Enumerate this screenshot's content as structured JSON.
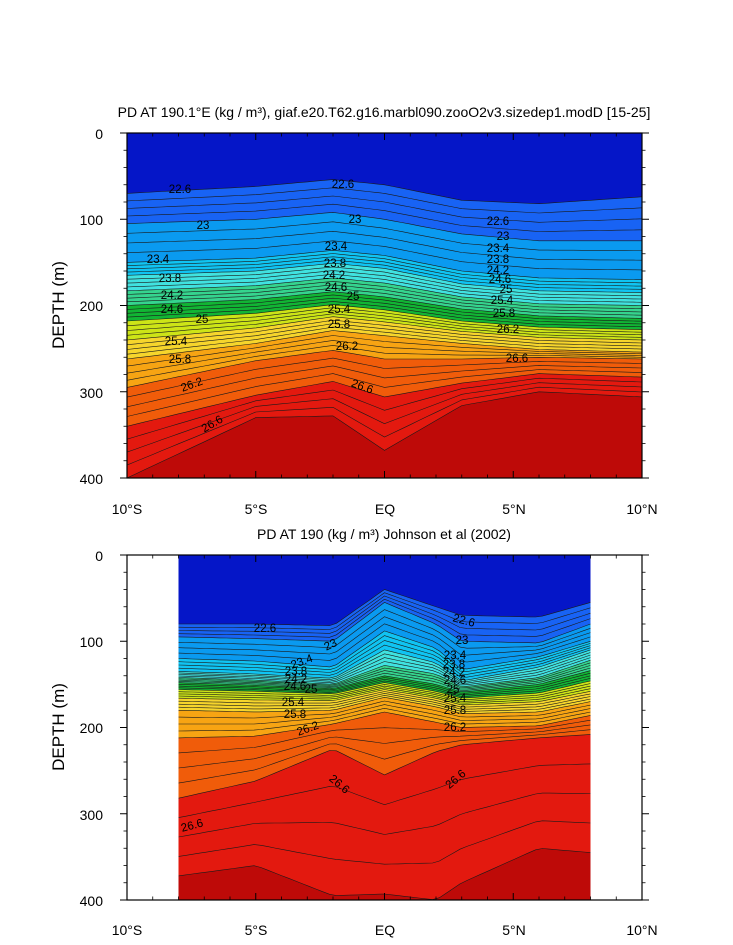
{
  "chart_data": [
    {
      "type": "contour",
      "title": "PD AT 190.1°E (kg / m³), giaf.e20.T62.g16.marbl090.zooO2v3.sizedep1.modD [15-25]",
      "xlabel": "",
      "ylabel": "DEPTH (m)",
      "xlim": [
        -10,
        10
      ],
      "ylim": [
        400,
        0
      ],
      "x_ticks": [
        -10,
        -5,
        0,
        5,
        10
      ],
      "x_tick_labels": [
        "10°S",
        "5°S",
        "EQ",
        "5°N",
        "10°N"
      ],
      "y_ticks": [
        0,
        100,
        200,
        300,
        400
      ],
      "y_tick_labels": [
        "0",
        "100",
        "200",
        "300",
        "400"
      ],
      "data_extent": [
        -10,
        10
      ],
      "contour_labels": [
        "22.6",
        "22.6",
        "22.6",
        "23",
        "23",
        "23",
        "23.4",
        "23.4",
        "23.4",
        "23.8",
        "23.8",
        "23.8",
        "24.2",
        "24.2",
        "24.2",
        "24.6",
        "24.6",
        "24.6",
        "25",
        "25",
        "25",
        "25.4",
        "25.4",
        "25.4",
        "25.8",
        "25.8",
        "25.8",
        "26.2",
        "26.2",
        "26.2",
        "26.6",
        "26.6",
        "26.6"
      ],
      "fields": {
        "22.6": [
          [
            -10,
            70
          ],
          [
            -5,
            62
          ],
          [
            -2,
            54
          ],
          [
            0,
            60
          ],
          [
            3,
            78
          ],
          [
            6,
            82
          ],
          [
            10,
            74
          ]
        ],
        "23": [
          [
            -10,
            105
          ],
          [
            -5,
            100
          ],
          [
            -2,
            92
          ],
          [
            0,
            100
          ],
          [
            3,
            117
          ],
          [
            6,
            125
          ],
          [
            10,
            125
          ]
        ],
        "23.4": [
          [
            -10,
            150
          ],
          [
            -5,
            145
          ],
          [
            -2,
            136
          ],
          [
            0,
            142
          ],
          [
            3,
            160
          ],
          [
            6,
            168
          ],
          [
            10,
            170
          ]
        ],
        "23.8": [
          [
            -10,
            165
          ],
          [
            -5,
            160
          ],
          [
            -2,
            151
          ],
          [
            0,
            157
          ],
          [
            3,
            175
          ],
          [
            6,
            183
          ],
          [
            10,
            185
          ]
        ],
        "24.2": [
          [
            -10,
            183
          ],
          [
            -5,
            177
          ],
          [
            -2,
            168
          ],
          [
            0,
            174
          ],
          [
            3,
            190
          ],
          [
            6,
            198
          ],
          [
            10,
            200
          ]
        ],
        "24.6": [
          [
            -10,
            200
          ],
          [
            -5,
            193
          ],
          [
            -2,
            184
          ],
          [
            0,
            190
          ],
          [
            3,
            204
          ],
          [
            6,
            212
          ],
          [
            10,
            215
          ]
        ],
        "25": [
          [
            -10,
            218
          ],
          [
            -5,
            209
          ],
          [
            -2,
            199
          ],
          [
            0,
            205
          ],
          [
            3,
            218
          ],
          [
            6,
            225
          ],
          [
            10,
            228
          ]
        ],
        "25.4": [
          [
            -10,
            240
          ],
          [
            -5,
            226
          ],
          [
            -2,
            213
          ],
          [
            0,
            219
          ],
          [
            3,
            230
          ],
          [
            6,
            237
          ],
          [
            10,
            240
          ]
        ],
        "25.8": [
          [
            -10,
            262
          ],
          [
            -5,
            244
          ],
          [
            -2,
            229
          ],
          [
            0,
            235
          ],
          [
            3,
            244
          ],
          [
            6,
            251
          ],
          [
            10,
            254
          ]
        ],
        "26.2": [
          [
            -10,
            295
          ],
          [
            -5,
            264
          ],
          [
            -2,
            252
          ],
          [
            0,
            262
          ],
          [
            3,
            262
          ],
          [
            6,
            260
          ],
          [
            10,
            262
          ]
        ],
        "26.6": [
          [
            -10,
            340
          ],
          [
            -5,
            304
          ],
          [
            -2,
            288
          ],
          [
            0,
            306
          ],
          [
            3,
            290
          ],
          [
            6,
            279
          ],
          [
            10,
            283
          ]
        ],
        "26.8": [
          [
            -10,
            400
          ],
          [
            -5,
            330
          ],
          [
            -2,
            328
          ],
          [
            0,
            368
          ],
          [
            3,
            316
          ],
          [
            6,
            300
          ],
          [
            10,
            306
          ]
        ]
      }
    },
    {
      "type": "contour",
      "title": "PD AT 190 (kg / m³) Johnson et al (2002)",
      "xlabel": "",
      "ylabel": "DEPTH (m)",
      "xlim": [
        -10,
        10
      ],
      "ylim": [
        400,
        0
      ],
      "x_ticks": [
        -10,
        -5,
        0,
        5,
        10
      ],
      "x_tick_labels": [
        "10°S",
        "5°S",
        "EQ",
        "5°N",
        "10°N"
      ],
      "y_ticks": [
        0,
        100,
        200,
        300,
        400
      ],
      "y_tick_labels": [
        "0",
        "100",
        "200",
        "300",
        "400"
      ],
      "data_extent": [
        -8,
        8
      ],
      "contour_labels": [
        "22.6",
        "22.6",
        "23",
        "23",
        "23.4",
        "23.4",
        "23.8",
        "23.8",
        "24.2",
        "24.2",
        "24.6",
        "24.6",
        "25",
        "25",
        "25.4",
        "25.4",
        "25.8",
        "25.8",
        "26.2",
        "26.2",
        "26.6",
        "26.6",
        "26.6"
      ],
      "fields": {
        "22.6": [
          [
            -8,
            80
          ],
          [
            -5,
            80
          ],
          [
            -2,
            82
          ],
          [
            0,
            40
          ],
          [
            2,
            60
          ],
          [
            3,
            70
          ],
          [
            6,
            72
          ],
          [
            8,
            55
          ]
        ],
        "23": [
          [
            -8,
            95
          ],
          [
            -5,
            97
          ],
          [
            -2,
            100
          ],
          [
            0,
            55
          ],
          [
            2,
            80
          ],
          [
            3,
            100
          ],
          [
            6,
            102
          ],
          [
            8,
            80
          ]
        ],
        "23.4": [
          [
            -8,
            120
          ],
          [
            -5,
            123
          ],
          [
            -2,
            130
          ],
          [
            0,
            88
          ],
          [
            2,
            108
          ],
          [
            3,
            133
          ],
          [
            6,
            118
          ],
          [
            8,
            100
          ]
        ],
        "23.8": [
          [
            -8,
            135
          ],
          [
            -5,
            138
          ],
          [
            -2,
            143
          ],
          [
            0,
            110
          ],
          [
            2,
            125
          ],
          [
            3,
            146
          ],
          [
            6,
            130
          ],
          [
            8,
            110
          ]
        ],
        "24.2": [
          [
            -8,
            142
          ],
          [
            -5,
            145
          ],
          [
            -2,
            150
          ],
          [
            0,
            128
          ],
          [
            2,
            138
          ],
          [
            3,
            153
          ],
          [
            6,
            142
          ],
          [
            8,
            122
          ]
        ],
        "24.6": [
          [
            -8,
            148
          ],
          [
            -5,
            151
          ],
          [
            -2,
            155
          ],
          [
            0,
            140
          ],
          [
            2,
            150
          ],
          [
            3,
            159
          ],
          [
            6,
            150
          ],
          [
            8,
            134
          ]
        ],
        "25": [
          [
            -8,
            156
          ],
          [
            -5,
            158
          ],
          [
            -2,
            161
          ],
          [
            0,
            148
          ],
          [
            2,
            158
          ],
          [
            3,
            166
          ],
          [
            6,
            160
          ],
          [
            8,
            146
          ]
        ],
        "25.4": [
          [
            -8,
            166
          ],
          [
            -5,
            168
          ],
          [
            -2,
            169
          ],
          [
            0,
            156
          ],
          [
            2,
            166
          ],
          [
            3,
            174
          ],
          [
            6,
            170
          ],
          [
            8,
            158
          ]
        ],
        "25.8": [
          [
            -8,
            180
          ],
          [
            -5,
            182
          ],
          [
            -2,
            180
          ],
          [
            0,
            165
          ],
          [
            2,
            176
          ],
          [
            3,
            184
          ],
          [
            6,
            182
          ],
          [
            8,
            170
          ]
        ],
        "26.2": [
          [
            -8,
            212
          ],
          [
            -5,
            210
          ],
          [
            -2,
            196
          ],
          [
            0,
            182
          ],
          [
            2,
            194
          ],
          [
            3,
            200
          ],
          [
            6,
            198
          ],
          [
            8,
            186
          ]
        ],
        "26.6": [
          [
            -8,
            282
          ],
          [
            -5,
            262
          ],
          [
            -2,
            225
          ],
          [
            0,
            255
          ],
          [
            2,
            228
          ],
          [
            3,
            220
          ],
          [
            6,
            212
          ],
          [
            8,
            208
          ]
        ],
        "26.8": [
          [
            -8,
            372
          ],
          [
            -5,
            360
          ],
          [
            -2,
            395
          ],
          [
            0,
            393
          ],
          [
            2,
            400
          ],
          [
            3,
            380
          ],
          [
            6,
            340
          ],
          [
            8,
            345
          ]
        ]
      }
    }
  ]
}
